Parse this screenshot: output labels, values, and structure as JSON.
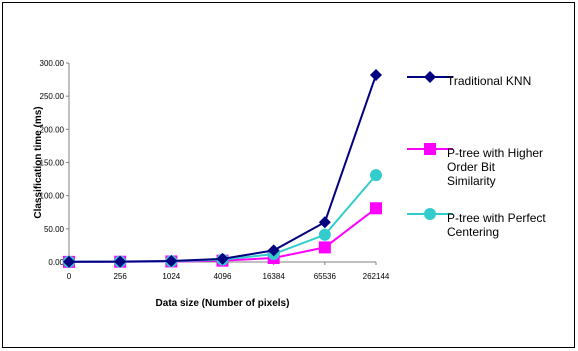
{
  "chart_data": {
    "type": "line",
    "categories": [
      "0",
      "256",
      "1024",
      "4096",
      "16384",
      "65536",
      "262144"
    ],
    "xlabel": "Data size (Number of pixels)",
    "ylabel": "Classification time (ms)",
    "ylim": [
      0,
      300
    ],
    "yticks": [
      "0.00",
      "50.00",
      "100.00",
      "150.00",
      "200.00",
      "250.00",
      "300.00"
    ],
    "grid": false,
    "legend_position": "right",
    "series": [
      {
        "name": "Traditional KNN",
        "values": [
          0.3,
          0.6,
          1.5,
          4.8,
          17.5,
          60,
          282
        ],
        "color": "#000080",
        "marker": "diamond"
      },
      {
        "name": "P-tree with Higher Order Bit Similarity",
        "legend_lines": [
          "P-tree with Higher",
          "Order Bit",
          "Similarity"
        ],
        "values": [
          0.2,
          0.4,
          0.8,
          2.0,
          6.0,
          22,
          81
        ],
        "color": "#ff00ff",
        "marker": "square"
      },
      {
        "name": "P-tree with Perfect Centering",
        "legend_lines": [
          "P-tree with Perfect",
          "Centering"
        ],
        "values": [
          0.3,
          0.5,
          1.2,
          3.5,
          12,
          41,
          131
        ],
        "color": "#33cccc",
        "marker": "circle"
      }
    ]
  }
}
